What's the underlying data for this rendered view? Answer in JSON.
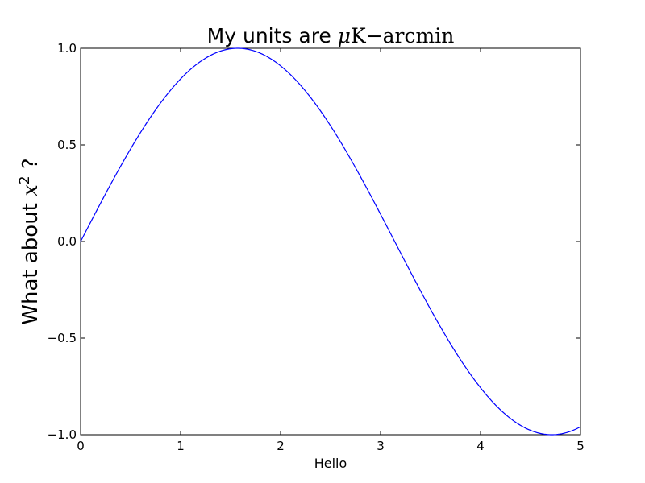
{
  "chart_data": {
    "type": "line",
    "title": {
      "prefix": "My units are ",
      "mu": "μ",
      "unit": "K",
      "minus": "−",
      "suffix": "arcmin"
    },
    "xlabel": "Hello",
    "ylabel": {
      "prefix": "What about ",
      "var": "x",
      "exp": "2",
      "suffix": " ?"
    },
    "xlim": [
      0,
      5
    ],
    "ylim": [
      -1.0,
      1.0
    ],
    "xticks": [
      0,
      1,
      2,
      3,
      4,
      5
    ],
    "xtick_labels": [
      "0",
      "1",
      "2",
      "3",
      "4",
      "5"
    ],
    "yticks": [
      1.0,
      0.5,
      0.0,
      -0.5,
      -1.0
    ],
    "ytick_labels": [
      "1.0",
      "0.5",
      "0.0",
      "−0.5",
      "−1.0"
    ],
    "grid": false,
    "series": [
      {
        "function": "sin(x)",
        "color": "#0000ff",
        "x": [
          0,
          0.25,
          0.5,
          0.75,
          1.0,
          1.25,
          1.5,
          1.5708,
          1.75,
          2.0,
          2.25,
          2.5,
          2.75,
          3.0,
          3.25,
          3.5,
          3.75,
          4.0,
          4.25,
          4.5,
          4.7124,
          4.75,
          5.0
        ],
        "y": [
          0,
          0.247,
          0.479,
          0.682,
          0.841,
          0.949,
          0.997,
          1.0,
          0.984,
          0.909,
          0.778,
          0.598,
          0.382,
          0.141,
          -0.108,
          -0.351,
          -0.572,
          -0.757,
          -0.895,
          -0.978,
          -1.0,
          -0.999,
          -0.959
        ]
      }
    ]
  }
}
